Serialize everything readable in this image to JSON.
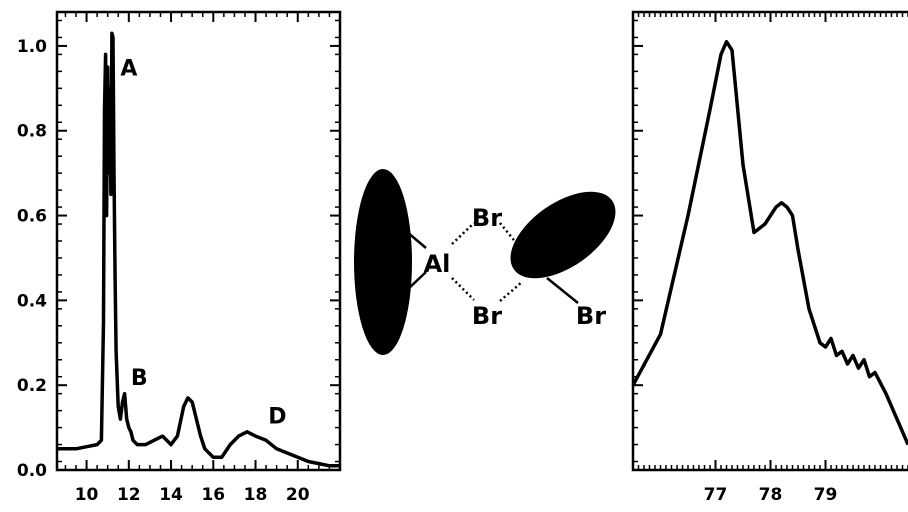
{
  "chart_data": [
    {
      "type": "line",
      "xlim": [
        8.6,
        22
      ],
      "ylim": [
        0,
        1.08
      ],
      "x_ticks": [
        "10",
        "12",
        "14",
        "16",
        "18",
        "20"
      ],
      "y_ticks": [
        "0.0",
        "0.2",
        "0.4",
        "0.6",
        "0.8",
        "1.0"
      ],
      "annotations": [
        {
          "text": "A",
          "x": 11.6,
          "y": 0.93
        },
        {
          "text": "B",
          "x": 12.1,
          "y": 0.2
        },
        {
          "text": "D",
          "x": 18.6,
          "y": 0.11
        }
      ],
      "series": [
        {
          "x": [
            8.6,
            9.5,
            10.0,
            10.5,
            10.7,
            10.8,
            10.85,
            10.9,
            10.95,
            11.0,
            11.05,
            11.1,
            11.15,
            11.2,
            11.25,
            11.3,
            11.35,
            11.4,
            11.5,
            11.6,
            11.7,
            11.8,
            11.9,
            12.0,
            12.1,
            12.2,
            12.4,
            12.8,
            13.2,
            13.6,
            14.0,
            14.3,
            14.6,
            14.8,
            15.0,
            15.2,
            15.4,
            15.6,
            16.0,
            16.4,
            16.8,
            17.2,
            17.6,
            18.0,
            18.5,
            19.0,
            19.5,
            20.0,
            20.5,
            21.0,
            21.5,
            22.0
          ],
          "y": [
            0.05,
            0.05,
            0.055,
            0.06,
            0.07,
            0.35,
            0.85,
            0.98,
            0.6,
            0.95,
            0.7,
            0.9,
            0.65,
            1.03,
            1.02,
            0.7,
            0.45,
            0.28,
            0.15,
            0.12,
            0.16,
            0.18,
            0.12,
            0.1,
            0.09,
            0.07,
            0.06,
            0.06,
            0.07,
            0.08,
            0.06,
            0.08,
            0.15,
            0.17,
            0.16,
            0.12,
            0.08,
            0.05,
            0.03,
            0.03,
            0.06,
            0.08,
            0.09,
            0.08,
            0.07,
            0.05,
            0.04,
            0.03,
            0.02,
            0.015,
            0.01,
            0.01
          ]
        }
      ]
    },
    {
      "type": "line",
      "xlim": [
        75.5,
        80.5
      ],
      "ylim": [
        0,
        1.08
      ],
      "x_ticks": [
        "77",
        "78",
        "79"
      ],
      "series": [
        {
          "x": [
            75.5,
            76.0,
            76.5,
            76.9,
            77.1,
            77.2,
            77.3,
            77.5,
            77.7,
            77.9,
            78.1,
            78.2,
            78.3,
            78.4,
            78.5,
            78.7,
            78.9,
            79.0,
            79.1,
            79.2,
            79.3,
            79.4,
            79.5,
            79.6,
            79.7,
            79.8,
            79.9,
            80.1,
            80.3,
            80.5
          ],
          "y": [
            0.2,
            0.32,
            0.6,
            0.85,
            0.98,
            1.01,
            0.99,
            0.72,
            0.56,
            0.58,
            0.62,
            0.63,
            0.62,
            0.6,
            0.52,
            0.38,
            0.3,
            0.29,
            0.31,
            0.27,
            0.28,
            0.25,
            0.27,
            0.24,
            0.26,
            0.22,
            0.23,
            0.18,
            0.12,
            0.06
          ]
        }
      ]
    }
  ],
  "molecule": {
    "atoms": [
      "Br",
      "Al",
      "Br",
      "Br"
    ],
    "shape_color": "#000000",
    "bond_color": "#000000"
  }
}
